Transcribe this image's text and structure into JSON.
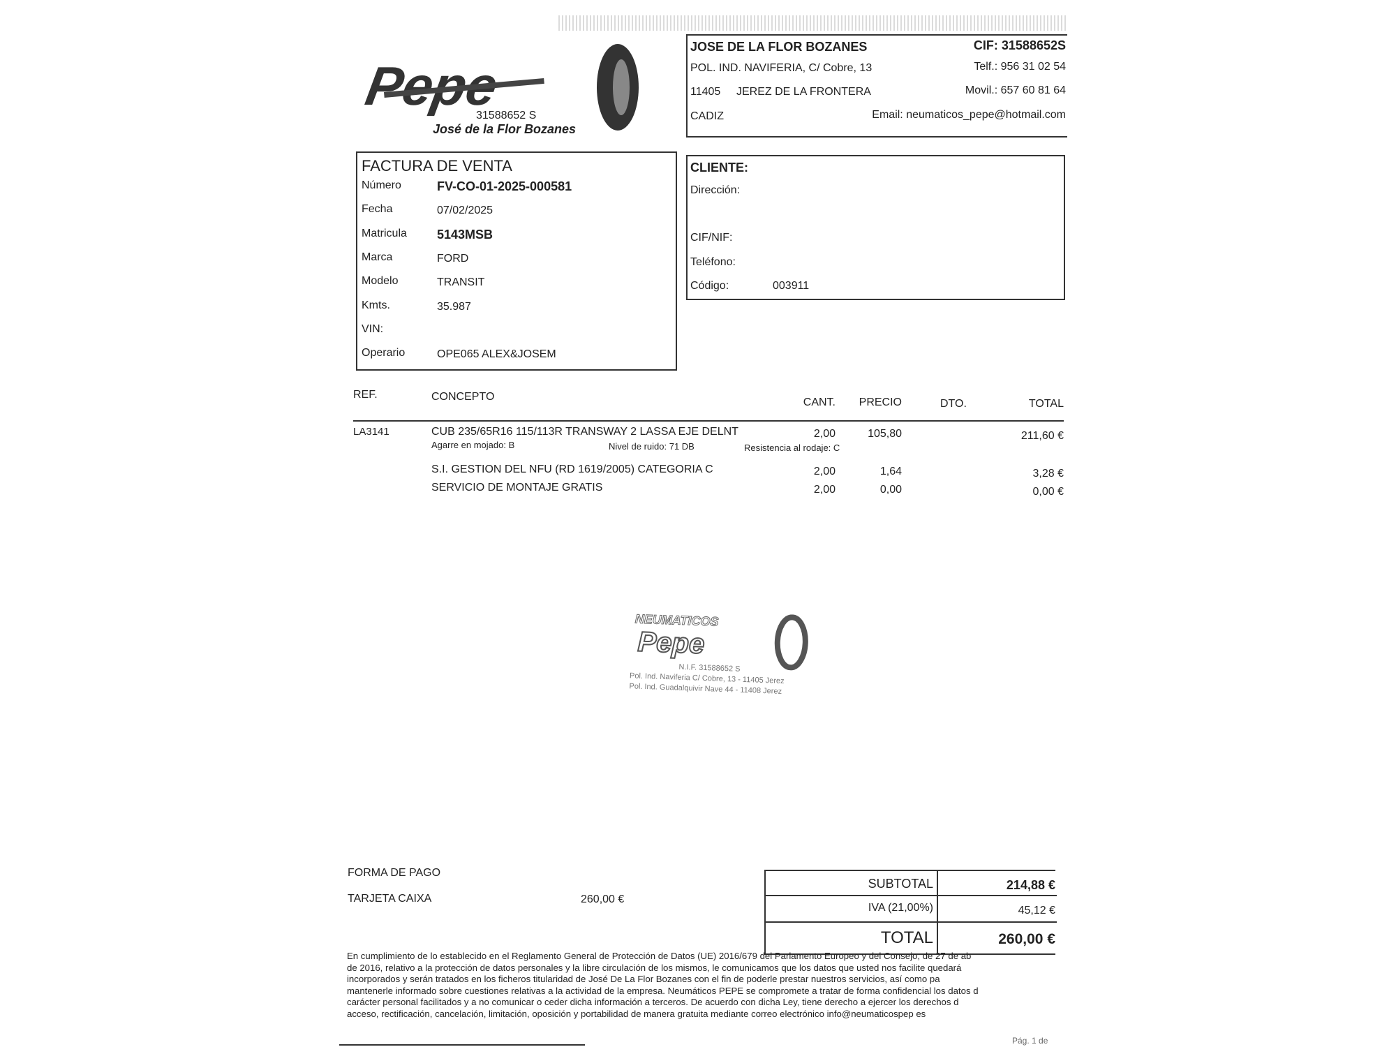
{
  "logo": {
    "brand": "Pepe",
    "nif": "31588652 S",
    "owner": "José de la Flor Bozanes"
  },
  "company": {
    "name": "JOSE DE LA FLOR BOZANES",
    "cif": "CIF: 31588652S",
    "address": "POL. IND. NAVIFERIA, C/ Cobre, 13",
    "phone": "Telf.: 956 31 02 54",
    "postal": "11405",
    "city": "JEREZ DE LA FRONTERA",
    "mobile": "Movil.: 657 60 81 64",
    "province": "CADIZ",
    "email": "Email: neumaticos_pepe@hotmail.com"
  },
  "invoice": {
    "title": "FACTURA DE VENTA",
    "fields": [
      {
        "label": "Número",
        "value": "FV-CO-01-2025-000581"
      },
      {
        "label": "Fecha",
        "value": "07/02/2025"
      },
      {
        "label": "Matricula",
        "value": "5143MSB"
      },
      {
        "label": "Marca",
        "value": "FORD"
      },
      {
        "label": "Modelo",
        "value": "TRANSIT"
      },
      {
        "label": "Kmts.",
        "value": "35.987"
      },
      {
        "label": "VIN:",
        "value": ""
      },
      {
        "label": "Operario",
        "value": "OPE065 ALEX&JOSEM"
      }
    ]
  },
  "client": {
    "title": "CLIENTE:",
    "direccion": "Dirección:",
    "cif": "CIF/NIF:",
    "telefono": "Teléfono:",
    "codigo_label": "Código:",
    "codigo": "003911"
  },
  "table": {
    "headers": {
      "ref": "REF.",
      "concepto": "CONCEPTO",
      "cant": "CANT.",
      "precio": "PRECIO",
      "dto": "DTO.",
      "total": "TOTAL"
    },
    "rows": [
      {
        "ref": "LA3141",
        "concepto": "CUB 235/65R16 115/113R TRANSWAY 2 LASSA EJE DELNT",
        "cant": "2,00",
        "precio": "105,80",
        "dto": "",
        "total": "211,60 €",
        "details": [
          "Agarre en mojado: B",
          "Nivel de ruido: 71 DB",
          "Resistencia al rodaje: C"
        ]
      },
      {
        "ref": "",
        "concepto": "S.I. GESTION DEL NFU (RD 1619/2005) CATEGORIA C",
        "cant": "2,00",
        "precio": "1,64",
        "dto": "",
        "total": "3,28 €"
      },
      {
        "ref": "",
        "concepto": "SERVICIO DE MONTAJE GRATIS",
        "cant": "2,00",
        "precio": "0,00",
        "dto": "",
        "total": "0,00 €"
      }
    ]
  },
  "stamp": {
    "text": [
      "NEUMATICOS",
      "Pepe",
      "N.I.F. 31588652 S",
      "Pol. Ind. Naviferia C/ Cobre, 13 - 11405 Jerez",
      "Pol. Ind. Guadalquivir Nave 44 - 11408 Jerez"
    ]
  },
  "payment": {
    "title": "FORMA DE PAGO",
    "method": "TARJETA CAIXA",
    "amount": "260,00 €"
  },
  "totals": {
    "subtotal_label": "SUBTOTAL",
    "subtotal": "214,88 €",
    "iva_label": "IVA (21,00%)",
    "iva": "45,12 €",
    "total_label": "TOTAL",
    "total": "260,00 €"
  },
  "legal": [
    "En cumplimiento de lo establecido en el Reglamento General de Protección de Datos (UE) 2016/679 del Parlamento Europeo y del Consejo, de 27 de ab",
    "de 2016, relativo a la protección de datos personales y la libre circulación de los mismos, le comunicamos que los datos que usted nos facilite quedará",
    "incorporados y serán tratados en los ficheros titularidad de José De La Flor Bozanes con el fin de poderle prestar nuestros servicios, así como pa",
    "mantenerle informado sobre cuestiones relativas a la actividad de la empresa. Neumáticos PEPE se compromete a tratar de forma confidencial los datos d",
    "carácter personal facilitados y a no comunicar o ceder dicha información a terceros. De acuerdo con dicha Ley, tiene derecho a ejercer los derechos d",
    "acceso, rectificación, cancelación, limitación, oposición y portabilidad de manera gratuita mediante correo electrónico info@neumaticospep es"
  ],
  "page": "Pág. 1 de"
}
